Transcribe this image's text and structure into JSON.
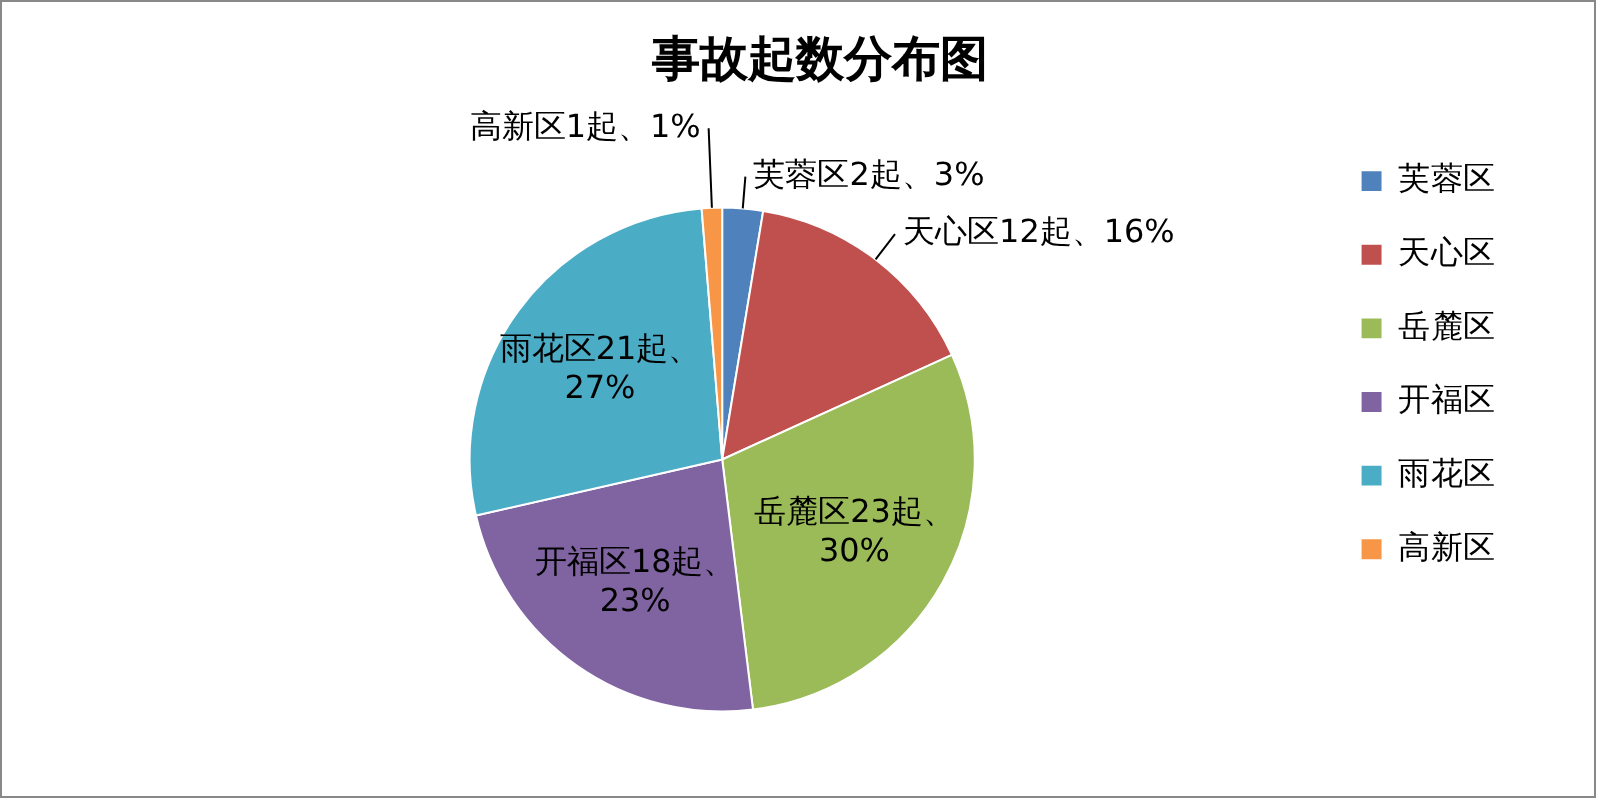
{
  "chart_data": {
    "type": "pie",
    "title": "事故起数分布图",
    "categories": [
      "芙蓉区",
      "天心区",
      "岳麓区",
      "开福区",
      "雨花区",
      "高新区"
    ],
    "values": [
      2,
      12,
      23,
      18,
      21,
      1
    ],
    "colors": [
      "#4f81bd",
      "#c0504d",
      "#9bbb59",
      "#8064a2",
      "#4bacc6",
      "#f79646"
    ],
    "value_labels": [
      "芙蓉区2起、3%",
      "天心区12起、16%",
      "岳麓区23起、30%",
      "开福区18起、23%",
      "雨花区21起、27%",
      "高新区1起、1%"
    ],
    "legend": "right"
  }
}
